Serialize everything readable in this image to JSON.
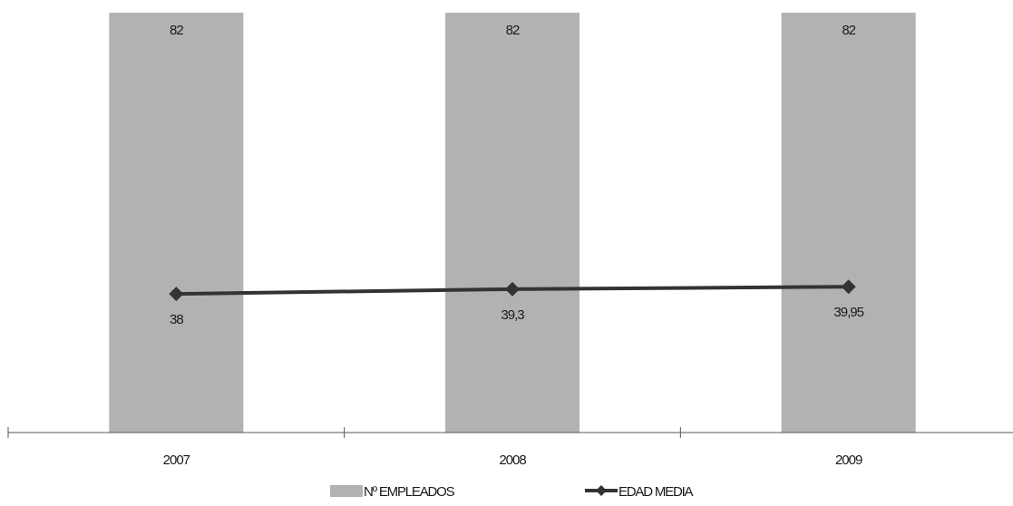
{
  "chart_data": {
    "type": "bar",
    "categories": [
      "2007",
      "2008",
      "2009"
    ],
    "series": [
      {
        "name": "Nº EMPLEADOS",
        "type": "bar",
        "values": [
          82,
          82,
          82
        ],
        "labels": [
          "82",
          "82",
          "82"
        ],
        "color": "#b2b2b2"
      },
      {
        "name": "EDAD MEDIA",
        "type": "line",
        "values": [
          38,
          39.3,
          39.95
        ],
        "labels": [
          "38",
          "39,3",
          "39,95"
        ],
        "color": "#333333",
        "marker": "diamond"
      }
    ],
    "legend_position": "bottom",
    "grid": false
  }
}
